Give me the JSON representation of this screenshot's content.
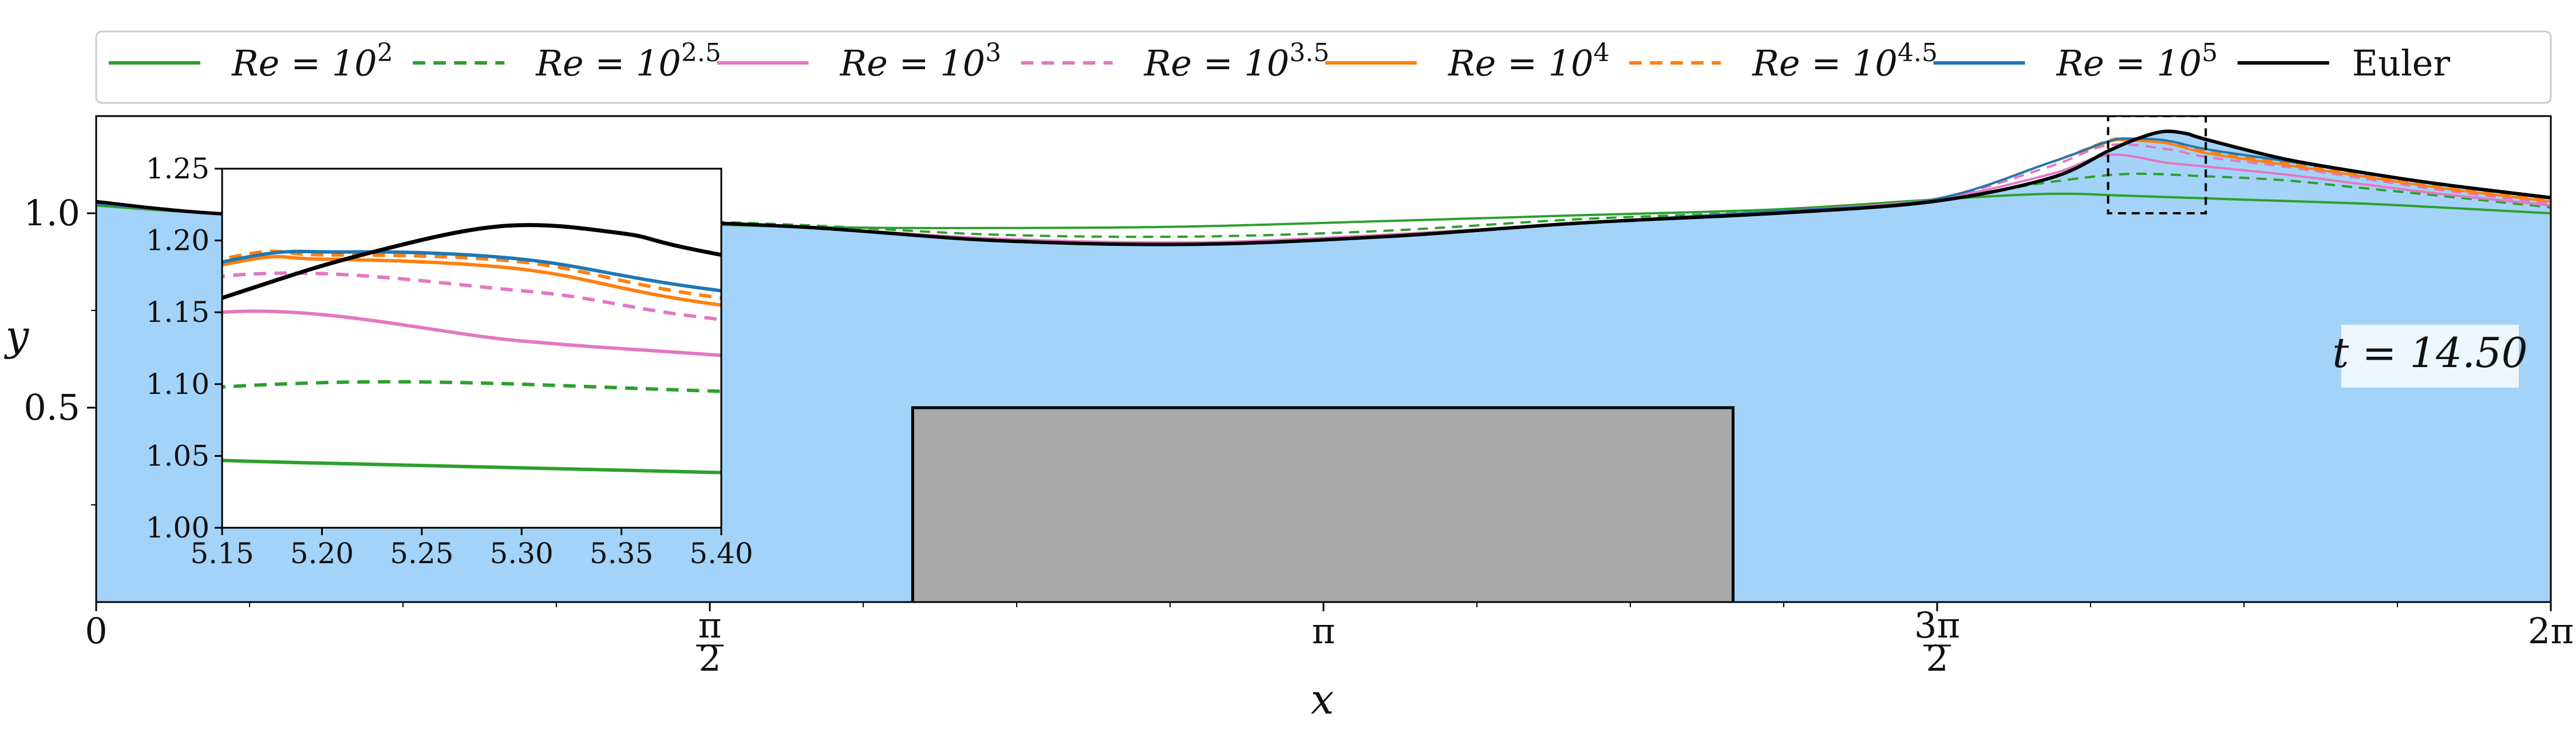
{
  "chart_data": {
    "type": "line",
    "title": "",
    "xlabel": "x",
    "ylabel": "y",
    "xlim": [
      0,
      6.2832
    ],
    "ylim": [
      0.0,
      1.25
    ],
    "annotation": "t = 14.50",
    "x_ticks": [
      {
        "value": 0,
        "label": "0"
      },
      {
        "value": 1.5708,
        "label": "π/2"
      },
      {
        "value": 3.1416,
        "label": "π"
      },
      {
        "value": 4.7124,
        "label": "3π/2"
      },
      {
        "value": 6.2832,
        "label": "2π"
      }
    ],
    "y_ticks": [
      {
        "value": 0.5,
        "label": "0.5"
      },
      {
        "value": 1.0,
        "label": "1.0"
      }
    ],
    "fill_color": "#a3d3f8",
    "obstacle": {
      "x0": 2.09,
      "x1": 4.19,
      "height": 0.5,
      "color": "#a9a9a9"
    },
    "zoom_box": {
      "x0": 5.15,
      "x1": 5.4,
      "y0": 1.0,
      "y1": 1.25
    },
    "legend": {
      "placement": "top",
      "ncol": 8
    },
    "series": [
      {
        "name": "Re = 10^2",
        "base": "Re = 10",
        "exp": "2",
        "color": "#2ca02c",
        "dash": "solid",
        "x": [
          0,
          0.3,
          0.8,
          1.3,
          1.8,
          2.3,
          2.8,
          3.3,
          3.8,
          4.3,
          4.7,
          5.0,
          5.2,
          5.5,
          5.8,
          6.0,
          6.2832
        ],
        "y": [
          1.02,
          1.0,
          0.985,
          0.98,
          0.965,
          0.962,
          0.966,
          0.98,
          0.995,
          1.01,
          1.035,
          1.05,
          1.045,
          1.035,
          1.025,
          1.015,
          1.0
        ]
      },
      {
        "name": "Re = 10^2.5",
        "base": "Re = 10",
        "exp": "2.5",
        "color": "#2ca02c",
        "dash": "dashed",
        "x": [
          0,
          0.3,
          0.8,
          1.3,
          1.8,
          2.3,
          2.8,
          3.3,
          3.8,
          4.3,
          4.7,
          5.0,
          5.2,
          5.4,
          5.6,
          5.8,
          6.0,
          6.2832
        ],
        "y": [
          1.02,
          1.0,
          0.985,
          0.985,
          0.97,
          0.945,
          0.94,
          0.955,
          0.985,
          1.005,
          1.035,
          1.08,
          1.101,
          1.095,
          1.085,
          1.065,
          1.045,
          1.015
        ]
      },
      {
        "name": "Re = 10^3",
        "base": "Re = 10",
        "exp": "3",
        "color": "#e377c2",
        "dash": "solid",
        "x": [
          0,
          0.3,
          0.8,
          1.3,
          1.8,
          2.3,
          2.8,
          3.3,
          3.8,
          4.3,
          4.7,
          5.0,
          5.15,
          5.3,
          5.4,
          5.6,
          5.8,
          6.0,
          6.2832
        ],
        "y": [
          1.025,
          1.0,
          0.98,
          0.982,
          0.965,
          0.935,
          0.925,
          0.945,
          0.975,
          1.005,
          1.035,
          1.1,
          1.15,
          1.13,
          1.12,
          1.1,
          1.075,
          1.05,
          1.02
        ]
      },
      {
        "name": "Re = 10^3.5",
        "base": "Re = 10",
        "exp": "3.5",
        "color": "#e377c2",
        "dash": "dashed",
        "x": [
          0,
          0.3,
          0.8,
          1.3,
          1.8,
          2.3,
          2.8,
          3.3,
          3.8,
          4.3,
          4.7,
          5.0,
          5.15,
          5.3,
          5.4,
          5.6,
          5.8,
          6.0,
          6.2832
        ],
        "y": [
          1.025,
          1.0,
          0.98,
          0.982,
          0.965,
          0.932,
          0.922,
          0.942,
          0.975,
          1.005,
          1.035,
          1.12,
          1.175,
          1.165,
          1.145,
          1.12,
          1.09,
          1.06,
          1.025
        ]
      },
      {
        "name": "Re = 10^4",
        "base": "Re = 10",
        "exp": "4",
        "color": "#ff7f0e",
        "dash": "solid",
        "x": [
          0,
          0.3,
          0.8,
          1.3,
          1.8,
          2.3,
          2.8,
          3.3,
          3.8,
          4.3,
          4.7,
          5.0,
          5.15,
          5.2,
          5.3,
          5.4,
          5.6,
          5.8,
          6.0,
          6.2832
        ],
        "y": [
          1.025,
          1.0,
          0.98,
          0.982,
          0.965,
          0.93,
          0.92,
          0.94,
          0.975,
          1.005,
          1.035,
          1.13,
          1.183,
          1.187,
          1.18,
          1.155,
          1.125,
          1.095,
          1.065,
          1.03
        ]
      },
      {
        "name": "Re = 10^4.5",
        "base": "Re = 10",
        "exp": "4.5",
        "color": "#ff7f0e",
        "dash": "dashed",
        "x": [
          0,
          0.3,
          0.8,
          1.3,
          1.8,
          2.3,
          2.8,
          3.3,
          3.8,
          4.3,
          4.7,
          5.0,
          5.15,
          5.2,
          5.3,
          5.4,
          5.6,
          5.8,
          6.0,
          6.2832
        ],
        "y": [
          1.025,
          1.0,
          0.98,
          0.982,
          0.965,
          0.93,
          0.92,
          0.94,
          0.975,
          1.005,
          1.035,
          1.13,
          1.187,
          1.19,
          1.185,
          1.16,
          1.13,
          1.1,
          1.07,
          1.035
        ]
      },
      {
        "name": "Re = 10^5",
        "base": "Re = 10",
        "exp": "5",
        "color": "#1f77b4",
        "dash": "solid",
        "x": [
          0,
          0.3,
          0.8,
          1.3,
          1.8,
          2.3,
          2.8,
          3.3,
          3.8,
          4.3,
          4.7,
          5.0,
          5.15,
          5.21,
          5.3,
          5.4,
          5.6,
          5.8,
          6.0,
          6.2832
        ],
        "y": [
          1.025,
          1.0,
          0.98,
          0.982,
          0.965,
          0.93,
          0.92,
          0.94,
          0.975,
          1.005,
          1.035,
          1.13,
          1.185,
          1.192,
          1.187,
          1.165,
          1.135,
          1.105,
          1.075,
          1.04
        ]
      },
      {
        "name": "Euler",
        "base": "Euler",
        "exp": "",
        "color": "#000000",
        "dash": "solid",
        "x": [
          0,
          0.3,
          0.8,
          1.3,
          1.8,
          2.3,
          2.8,
          3.3,
          3.8,
          4.3,
          4.7,
          5.0,
          5.15,
          5.22,
          5.29,
          5.35,
          5.4,
          5.6,
          5.8,
          6.0,
          6.2832
        ],
        "y": [
          1.03,
          1.0,
          0.98,
          0.982,
          0.965,
          0.93,
          0.92,
          0.94,
          0.975,
          1.0,
          1.03,
          1.09,
          1.16,
          1.19,
          1.21,
          1.205,
          1.19,
          1.14,
          1.105,
          1.075,
          1.04
        ]
      }
    ]
  }
}
